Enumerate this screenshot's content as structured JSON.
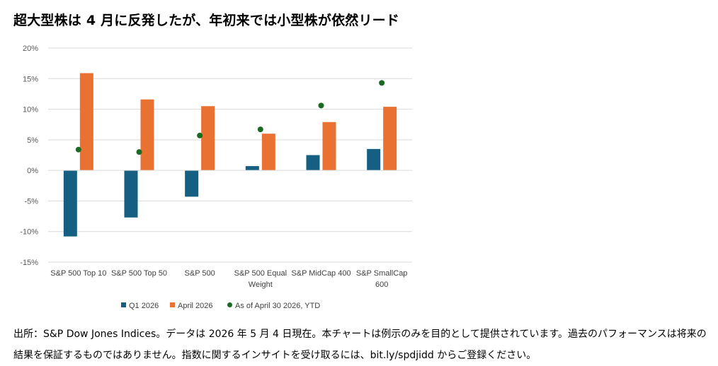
{
  "title": "超大型株は 4 月に反発したが、年初来では小型株が依然リード",
  "footnote": "出所：S&P Dow Jones Indices。データは 2026 年 5 月 4 日現在。本チャートは例示のみを目的として提供されています。過去のパフォーマンスは将来の結果を保証するものではありません。指数に関するインサイトを受け取るには、bit.ly/spdjidd からご登録ください。",
  "chart_data": {
    "type": "bar",
    "categories": [
      [
        "S&P 500 Top 10"
      ],
      [
        "S&P 500 Top 50"
      ],
      [
        "S&P 500"
      ],
      [
        "S&P 500 Equal",
        "Weight"
      ],
      [
        "S&P MidCap 400"
      ],
      [
        "S&P SmallCap",
        "600"
      ]
    ],
    "series": [
      {
        "name": "Q1 2026",
        "kind": "bar",
        "color": "#156082",
        "values": [
          -10.8,
          -7.7,
          -4.3,
          0.7,
          2.5,
          3.5
        ]
      },
      {
        "name": "April 2026",
        "kind": "bar",
        "color": "#E97132",
        "values": [
          15.9,
          11.6,
          10.5,
          6.0,
          7.9,
          10.4
        ]
      },
      {
        "name": "As of April 30 2026, YTD",
        "kind": "scatter",
        "color": "#196B24",
        "values": [
          3.4,
          3.0,
          5.7,
          6.7,
          10.6,
          14.3
        ]
      }
    ],
    "ylim": [
      -15,
      20
    ],
    "yticks": [
      -15,
      -10,
      -5,
      0,
      5,
      10,
      15,
      20
    ],
    "ytick_labels": [
      "-15%",
      "-10%",
      "-5%",
      "0%",
      "5%",
      "10%",
      "15%",
      "20%"
    ],
    "grid": true,
    "legend_position": "bottom"
  }
}
